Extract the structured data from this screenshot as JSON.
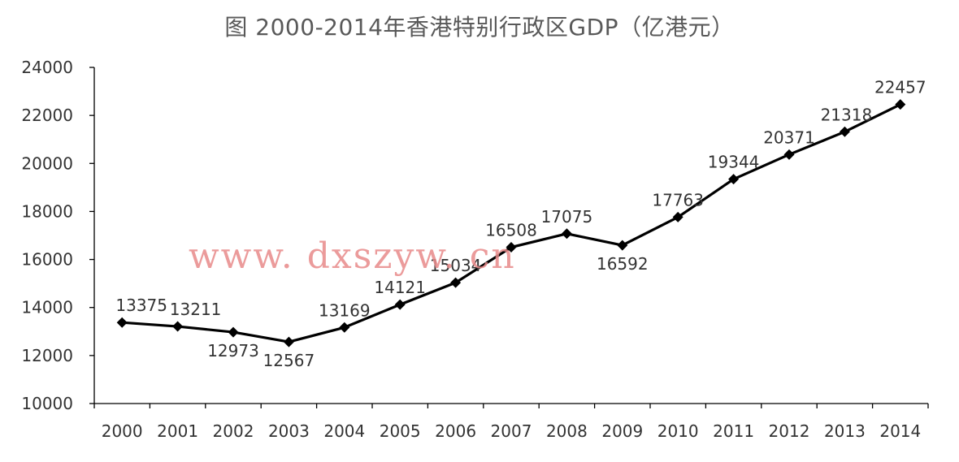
{
  "chart_data": {
    "type": "line",
    "title": "图  2000-2014年香港特别行政区GDP（亿港元）",
    "categories": [
      "2000",
      "2001",
      "2002",
      "2003",
      "2004",
      "2005",
      "2006",
      "2007",
      "2008",
      "2009",
      "2010",
      "2011",
      "2012",
      "2013",
      "2014"
    ],
    "series": [
      {
        "values": [
          13375,
          13211,
          12973,
          12567,
          13169,
          14121,
          15034,
          16508,
          17075,
          16592,
          17763,
          19344,
          20371,
          21318,
          22457
        ],
        "color": "#000000",
        "marker": "diamond"
      }
    ],
    "ylim": [
      10000,
      24000
    ],
    "yticks": [
      "10000",
      "12000",
      "14000",
      "16000",
      "18000",
      "20000",
      "22000",
      "24000"
    ],
    "ytick_values": [
      10000,
      12000,
      14000,
      16000,
      18000,
      20000,
      22000,
      24000
    ],
    "data_labels": [
      "13375",
      "13211",
      "12973",
      "12567",
      "13169",
      "14121",
      "15034",
      "16508",
      "17075",
      "16592",
      "17763",
      "19344",
      "20371",
      "21318",
      "22457"
    ],
    "grid": false,
    "watermark": "www. dxszyw. cn"
  }
}
